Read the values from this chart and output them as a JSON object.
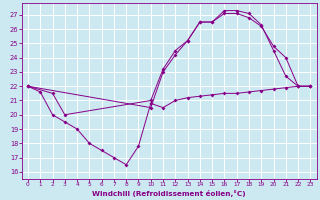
{
  "xlabel": "Windchill (Refroidissement éolien,°C)",
  "bg_color": "#cce8f0",
  "line_color": "#880088",
  "grid_color": "#ffffff",
  "xlim": [
    -0.5,
    23.5
  ],
  "ylim": [
    15.5,
    27.8
  ],
  "yticks": [
    16,
    17,
    18,
    19,
    20,
    21,
    22,
    23,
    24,
    25,
    26,
    27
  ],
  "xticks": [
    0,
    1,
    2,
    3,
    4,
    5,
    6,
    7,
    8,
    9,
    10,
    11,
    12,
    13,
    14,
    15,
    16,
    17,
    18,
    19,
    20,
    21,
    22,
    23
  ],
  "line1_x": [
    0,
    1,
    2,
    3,
    4,
    5,
    6,
    7,
    8,
    9,
    10,
    11,
    12,
    13,
    14,
    15,
    16,
    17,
    18,
    19,
    20,
    21,
    22,
    23
  ],
  "line1_y": [
    22,
    21.6,
    20.0,
    19.5,
    19.0,
    18.0,
    17.5,
    17.0,
    16.5,
    17.8,
    20.8,
    20.5,
    21.0,
    21.2,
    21.3,
    21.4,
    21.5,
    21.5,
    21.6,
    21.7,
    21.8,
    21.9,
    22.0,
    22.0
  ],
  "line2_x": [
    0,
    2,
    3,
    10,
    11,
    12,
    13,
    14,
    15,
    16,
    17,
    18,
    19,
    20,
    21,
    22,
    23
  ],
  "line2_y": [
    22.0,
    21.5,
    20.0,
    21.0,
    23.2,
    24.5,
    25.2,
    26.5,
    26.5,
    27.3,
    27.3,
    27.1,
    26.3,
    24.5,
    22.7,
    22.0,
    22.0
  ],
  "line3_x": [
    0,
    10,
    11,
    12,
    13,
    14,
    15,
    16,
    17,
    18,
    19,
    20,
    21,
    22,
    23
  ],
  "line3_y": [
    22.0,
    20.5,
    23.0,
    24.2,
    25.2,
    26.5,
    26.5,
    27.1,
    27.1,
    26.8,
    26.2,
    24.8,
    24.0,
    22.0,
    22.0
  ]
}
